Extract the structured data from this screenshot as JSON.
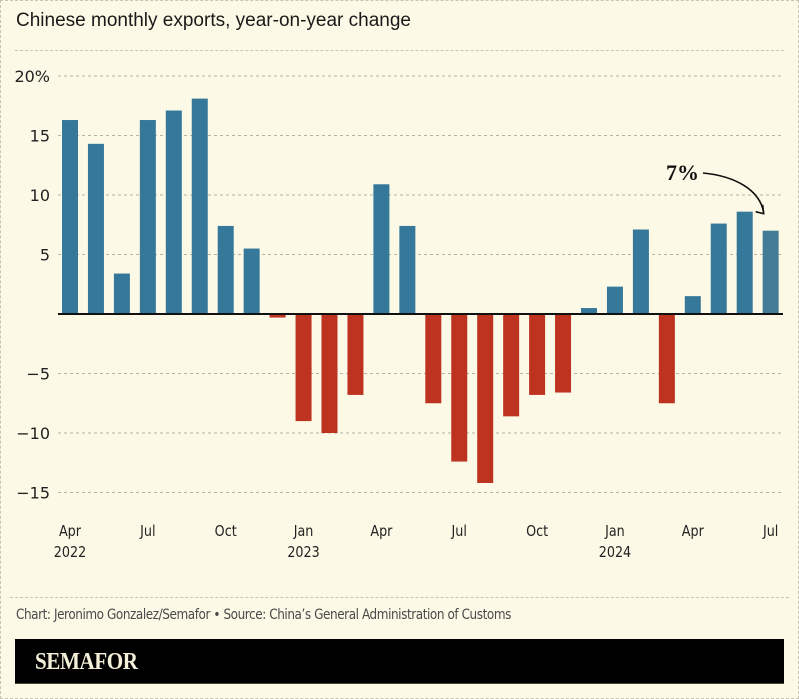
{
  "title": "Chinese monthly exports, year-on-year change",
  "credit": "Chart: Jeronimo Gonzalez/Semafor • Source: China’s General Administration of Customs",
  "brand": "SEMAFOR",
  "colors": {
    "positive": "#35789a",
    "negative": "#be3220",
    "last": "#447c96",
    "background": "#fcf9e6"
  },
  "chart_data": {
    "type": "bar",
    "title": "Chinese monthly exports, year-on-year change",
    "xlabel": "",
    "ylabel": "",
    "ylim": [
      -17,
      20
    ],
    "grid": true,
    "yticks": [
      {
        "value": 20,
        "label": "20%"
      },
      {
        "value": 15,
        "label": "15"
      },
      {
        "value": 10,
        "label": "10"
      },
      {
        "value": 5,
        "label": "5"
      },
      {
        "value": -5,
        "label": "−5"
      },
      {
        "value": -10,
        "label": "−10"
      },
      {
        "value": -15,
        "label": "−15"
      }
    ],
    "xticks": [
      {
        "index": 0,
        "month": "Apr",
        "year": "2022"
      },
      {
        "index": 3,
        "month": "Jul",
        "year": ""
      },
      {
        "index": 6,
        "month": "Oct",
        "year": ""
      },
      {
        "index": 9,
        "month": "Jan",
        "year": "2023"
      },
      {
        "index": 12,
        "month": "Apr",
        "year": ""
      },
      {
        "index": 15,
        "month": "Jul",
        "year": ""
      },
      {
        "index": 18,
        "month": "Oct",
        "year": ""
      },
      {
        "index": 21,
        "month": "Jan",
        "year": "2024"
      },
      {
        "index": 24,
        "month": "Apr",
        "year": ""
      },
      {
        "index": 27,
        "month": "Jul",
        "year": ""
      }
    ],
    "categories": [
      "2022-04",
      "2022-05",
      "2022-06",
      "2022-07",
      "2022-08",
      "2022-09",
      "2022-10",
      "2022-11",
      "2022-12",
      "2023-01",
      "2023-02",
      "2023-03",
      "2023-04",
      "2023-05",
      "2023-06",
      "2023-07",
      "2023-08",
      "2023-09",
      "2023-10",
      "2023-11",
      "2023-12",
      "2024-01",
      "2024-02",
      "2024-03",
      "2024-04",
      "2024-05",
      "2024-06",
      "2024-07"
    ],
    "values": [
      16.3,
      14.3,
      3.4,
      16.3,
      17.1,
      18.1,
      7.4,
      5.5,
      -0.3,
      -9.0,
      -10.0,
      -6.8,
      10.9,
      7.4,
      -7.5,
      -12.4,
      -14.2,
      -8.6,
      -6.8,
      -6.6,
      0.5,
      2.3,
      7.1,
      -7.5,
      1.5,
      7.6,
      8.6,
      7.0
    ],
    "annotation": {
      "text": "7%",
      "target_index": 27
    }
  }
}
